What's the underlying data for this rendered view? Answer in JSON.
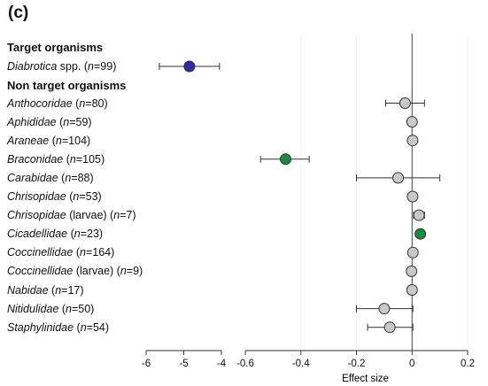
{
  "panel_label": "(c)",
  "headings": {
    "target": "Target organisms",
    "non_target": "Non target organisms"
  },
  "chart_data": {
    "type": "scatter",
    "subtype": "forest-plot",
    "xlabel": "Effect size",
    "axis_break": true,
    "left_segment": {
      "xlim": [
        -6,
        -4
      ],
      "ticks": [
        "-6",
        "-5",
        "-4"
      ]
    },
    "right_segment": {
      "xlim": [
        -0.6,
        0.2
      ],
      "ticks": [
        "-0.6",
        "-0.4",
        "-0.2",
        "0",
        "0.2"
      ]
    },
    "reference_line_x": 0,
    "colors": {
      "gray": "#c8c8c8",
      "green": "#1a8a3c",
      "blue": "#2b2ba6",
      "line": "#333333"
    },
    "rows": [
      {
        "group": "target",
        "taxon": "Diabrotica",
        "suffix": " spp.",
        "n": "99",
        "mean": -4.85,
        "lo": -5.65,
        "hi": -4.05,
        "color": "blue",
        "segment": "left"
      },
      {
        "group": "non_target",
        "taxon": "Anthocoridae",
        "suffix": "",
        "n": "80",
        "mean": -0.025,
        "lo": -0.095,
        "hi": 0.045,
        "color": "gray",
        "segment": "right"
      },
      {
        "group": "non_target",
        "taxon": "Aphididae",
        "suffix": "",
        "n": "59",
        "mean": 0.0,
        "lo": null,
        "hi": null,
        "color": "gray",
        "segment": "right"
      },
      {
        "group": "non_target",
        "taxon": "Araneae",
        "suffix": "",
        "n": "104",
        "mean": 0.002,
        "lo": null,
        "hi": null,
        "color": "gray",
        "segment": "right"
      },
      {
        "group": "non_target",
        "taxon": "Braconidae",
        "suffix": "",
        "n": "105",
        "mean": -0.455,
        "lo": -0.545,
        "hi": -0.37,
        "color": "green",
        "segment": "right"
      },
      {
        "group": "non_target",
        "taxon": "Carabidae",
        "suffix": "",
        "n": "88",
        "mean": -0.05,
        "lo": -0.2,
        "hi": 0.1,
        "color": "gray",
        "segment": "right"
      },
      {
        "group": "non_target",
        "taxon": "Chrisopidae",
        "suffix": "",
        "n": "53",
        "mean": 0.002,
        "lo": null,
        "hi": null,
        "color": "gray",
        "segment": "right"
      },
      {
        "group": "non_target",
        "taxon": "Chrisopidae",
        "suffix": " (larvae)",
        "n": "7",
        "mean": 0.025,
        "lo": 0.005,
        "hi": 0.045,
        "color": "gray",
        "segment": "right"
      },
      {
        "group": "non_target",
        "taxon": "Cicadellidae",
        "suffix": "",
        "n": "23",
        "mean": 0.03,
        "lo": 0.015,
        "hi": 0.045,
        "color": "green",
        "segment": "right"
      },
      {
        "group": "non_target",
        "taxon": "Coccinellidae",
        "suffix": "",
        "n": "164",
        "mean": 0.003,
        "lo": null,
        "hi": null,
        "color": "gray",
        "segment": "right"
      },
      {
        "group": "non_target",
        "taxon": "Coccinellidae",
        "suffix": " (larvae)",
        "n": "9",
        "mean": -0.002,
        "lo": null,
        "hi": null,
        "color": "gray",
        "segment": "right"
      },
      {
        "group": "non_target",
        "taxon": "Nabidae",
        "suffix": "",
        "n": "17",
        "mean": 0.0,
        "lo": null,
        "hi": null,
        "color": "gray",
        "segment": "right"
      },
      {
        "group": "non_target",
        "taxon": "Nitidulidae",
        "suffix": "",
        "n": "50",
        "mean": -0.1,
        "lo": -0.2,
        "hi": 0.003,
        "color": "gray",
        "segment": "right"
      },
      {
        "group": "non_target",
        "taxon": "Staphylinidae",
        "suffix": "",
        "n": "54",
        "mean": -0.08,
        "lo": -0.16,
        "hi": 0.003,
        "color": "gray",
        "segment": "right"
      }
    ]
  }
}
